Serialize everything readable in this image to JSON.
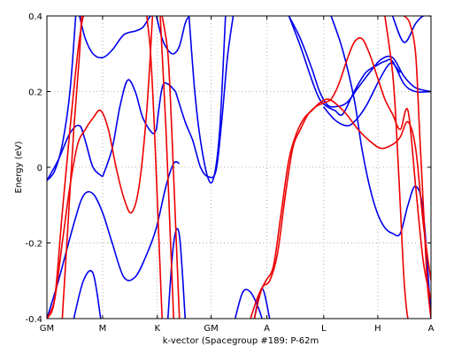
{
  "chart_data": {
    "type": "line",
    "title": "",
    "xlabel": "k-vector (Spacegroup #189: P-62m",
    "ylabel": "Energy (eV)",
    "xlim": [
      0,
      1
    ],
    "ylim": [
      -0.4,
      0.4
    ],
    "grid": true,
    "x_ticks": [
      {
        "label": "GM",
        "pos": 0.0
      },
      {
        "label": "M",
        "pos": 0.145
      },
      {
        "label": "K",
        "pos": 0.2874
      },
      {
        "label": "GM",
        "pos": 0.4276
      },
      {
        "label": "A",
        "pos": 0.5728
      },
      {
        "label": "L",
        "pos": 0.7207
      },
      {
        "label": "H",
        "pos": 0.8616
      },
      {
        "label": "A",
        "pos": 1.0
      }
    ],
    "y_ticks": [
      -0.4,
      -0.2,
      0,
      0.2,
      0.4
    ],
    "y_tick_labels": [
      "-0.4",
      "-0.2",
      "0",
      "0.2",
      "0.4"
    ],
    "series": [
      {
        "color": "#0000ee",
        "x": [
          0,
          0.02,
          0.04,
          0.06,
          0.075
        ],
        "y": [
          -0.035,
          -0.01,
          0.06,
          0.2,
          0.4
        ]
      },
      {
        "color": "#0000ee",
        "x": [
          0,
          0.03,
          0.06,
          0.085,
          0.1,
          0.12,
          0.145
        ],
        "y": [
          -0.035,
          0.02,
          0.09,
          0.11,
          0.07,
          0.0,
          -0.025
        ]
      },
      {
        "color": "#0000ee",
        "x": [
          0.145,
          0.17,
          0.19,
          0.21,
          0.23,
          0.25,
          0.275,
          0.285
        ],
        "y": [
          -0.025,
          0.05,
          0.16,
          0.23,
          0.2,
          0.13,
          0.09,
          0.1
        ]
      },
      {
        "color": "#0000ee",
        "x": [
          0.085,
          0.1,
          0.12,
          0.145,
          0.17,
          0.2,
          0.23,
          0.25,
          0.27,
          0.285
        ],
        "y": [
          0.4,
          0.34,
          0.3,
          0.29,
          0.31,
          0.35,
          0.36,
          0.37,
          0.4,
          0.4
        ]
      },
      {
        "color": "#0000ee",
        "x": [
          0.285,
          0.3,
          0.315,
          0.335
        ],
        "y": [
          0.1,
          0.21,
          0.22,
          0.2
        ]
      },
      {
        "color": "#0000ee",
        "x": [
          0.285,
          0.3,
          0.315,
          0.33,
          0.345,
          0.36,
          0.37
        ],
        "y": [
          0.4,
          0.34,
          0.31,
          0.3,
          0.32,
          0.38,
          0.4
        ]
      },
      {
        "color": "#0000ee",
        "x": [
          0.335,
          0.36,
          0.38,
          0.4,
          0.42,
          0.44,
          0.455,
          0.47,
          0.485
        ],
        "y": [
          0.2,
          0.12,
          0.07,
          0.0,
          -0.025,
          -0.01,
          0.12,
          0.29,
          0.4
        ]
      },
      {
        "color": "#0000ee",
        "x": [
          0.37,
          0.385,
          0.4,
          0.42,
          0.435,
          0.45,
          0.465
        ],
        "y": [
          0.4,
          0.2,
          0.07,
          -0.03,
          -0.025,
          0.1,
          0.4
        ]
      },
      {
        "color": "#0000ee",
        "x": [
          0.0,
          0.03,
          0.07,
          0.095,
          0.12,
          0.145,
          0.17,
          0.2,
          0.23,
          0.26,
          0.285,
          0.31,
          0.33,
          0.345
        ],
        "y": [
          -0.4,
          -0.3,
          -0.15,
          -0.075,
          -0.07,
          -0.12,
          -0.2,
          -0.29,
          -0.29,
          -0.23,
          -0.16,
          -0.05,
          0.01,
          0.01
        ]
      },
      {
        "color": "#0000ee",
        "x": [
          0.07,
          0.095,
          0.12,
          0.14
        ],
        "y": [
          -0.4,
          -0.3,
          -0.28,
          -0.4
        ]
      },
      {
        "color": "#0000ee",
        "x": [
          0.315,
          0.33,
          0.345,
          0.36
        ],
        "y": [
          -0.4,
          -0.2,
          -0.18,
          -0.4
        ]
      },
      {
        "color": "#0000ee",
        "x": [
          0.54,
          0.56,
          0.58
        ],
        "y": [
          -0.4,
          -0.32,
          -0.4
        ]
      },
      {
        "color": "#0000ee",
        "x": [
          0.49,
          0.51,
          0.53,
          0.55,
          0.56
        ],
        "y": [
          -0.4,
          -0.33,
          -0.33,
          -0.37,
          -0.4
        ]
      },
      {
        "color": "#0000ee",
        "x": [
          0.63,
          0.66,
          0.69,
          0.71,
          0.73,
          0.75,
          0.77,
          0.8,
          0.83,
          0.86,
          0.88,
          0.9,
          0.93,
          0.96,
          1.0
        ],
        "y": [
          0.4,
          0.32,
          0.23,
          0.18,
          0.16,
          0.15,
          0.14,
          0.2,
          0.25,
          0.27,
          0.28,
          0.28,
          0.22,
          0.2,
          0.2
        ]
      },
      {
        "color": "#0000ee",
        "x": [
          0.63,
          0.66,
          0.69,
          0.71,
          0.73,
          0.75,
          0.78,
          0.81,
          0.84,
          0.87,
          0.9,
          0.93,
          0.96,
          1.0
        ],
        "y": [
          0.4,
          0.34,
          0.26,
          0.2,
          0.165,
          0.16,
          0.17,
          0.21,
          0.25,
          0.285,
          0.29,
          0.24,
          0.21,
          0.2
        ]
      },
      {
        "color": "#0000ee",
        "x": [
          0.72,
          0.75,
          0.78,
          0.8,
          0.83,
          0.86,
          0.885,
          0.9,
          0.92
        ],
        "y": [
          0.16,
          0.125,
          0.11,
          0.12,
          0.16,
          0.22,
          0.265,
          0.275,
          0.25
        ]
      },
      {
        "color": "#0000ee",
        "x": [
          0.74,
          0.77,
          0.8,
          0.82,
          0.84,
          0.86,
          0.88,
          0.9,
          0.92,
          0.94,
          0.96,
          0.98,
          1.0
        ],
        "y": [
          0.4,
          0.31,
          0.18,
          0.05,
          -0.05,
          -0.12,
          -0.16,
          -0.175,
          -0.175,
          -0.1,
          -0.05,
          -0.12,
          -0.4
        ]
      },
      {
        "color": "#0000ee",
        "x": [
          0.9,
          0.93,
          0.96,
          0.98,
          1.0
        ],
        "y": [
          0.4,
          0.33,
          0.38,
          0.4,
          0.4
        ]
      },
      {
        "color": "#ee0000",
        "x": [
          0.0,
          0.02,
          0.04,
          0.06,
          0.08,
          0.1,
          0.12,
          0.14,
          0.16,
          0.18,
          0.2,
          0.22,
          0.24,
          0.26,
          0.275
        ],
        "y": [
          -0.4,
          -0.35,
          -0.2,
          -0.05,
          0.06,
          0.1,
          0.13,
          0.15,
          0.1,
          0.0,
          -0.08,
          -0.12,
          -0.05,
          0.15,
          0.4
        ]
      },
      {
        "color": "#ee0000",
        "x": [
          0.0,
          0.02,
          0.04,
          0.06,
          0.08,
          0.095,
          0.11
        ],
        "y": [
          -0.4,
          -0.35,
          -0.12,
          0.1,
          0.3,
          0.4,
          0.4
        ]
      },
      {
        "color": "#ee0000",
        "x": [
          0.04,
          0.055,
          0.07,
          0.085,
          0.09
        ],
        "y": [
          -0.4,
          -0.15,
          0.1,
          0.3,
          0.4
        ]
      },
      {
        "color": "#ee0000",
        "x": [
          0.26,
          0.27,
          0.28,
          0.29,
          0.3
        ],
        "y": [
          0.4,
          0.3,
          0.1,
          -0.15,
          -0.4
        ]
      },
      {
        "color": "#ee0000",
        "x": [
          0.3,
          0.315,
          0.325,
          0.335,
          0.345
        ],
        "y": [
          0.4,
          0.3,
          0.1,
          -0.15,
          -0.4
        ]
      },
      {
        "color": "#ee0000",
        "x": [
          0.295,
          0.31,
          0.32,
          0.33
        ],
        "y": [
          0.4,
          0.1,
          -0.15,
          -0.4
        ]
      },
      {
        "color": "#ee0000",
        "x": [
          0.54,
          0.56,
          0.58,
          0.6,
          0.62,
          0.64,
          0.66,
          0.68,
          0.7,
          0.72,
          0.74,
          0.76,
          0.78,
          0.8,
          0.82,
          0.84,
          0.86,
          0.88,
          0.9,
          0.92,
          0.94,
          0.96,
          0.98,
          1.0
        ],
        "y": [
          -0.4,
          -0.32,
          -0.3,
          -0.23,
          -0.08,
          0.05,
          0.1,
          0.14,
          0.16,
          0.17,
          0.18,
          0.22,
          0.28,
          0.33,
          0.34,
          0.3,
          0.24,
          0.18,
          0.14,
          0.1,
          0.15,
          -0.05,
          -0.25,
          -0.35
        ]
      },
      {
        "color": "#ee0000",
        "x": [
          0.53,
          0.55,
          0.57,
          0.59,
          0.61,
          0.63,
          0.65,
          0.67,
          0.69,
          0.71,
          0.73,
          0.75,
          0.78,
          0.81,
          0.84,
          0.87,
          0.9,
          0.92,
          0.94,
          0.96,
          0.98,
          1.0
        ],
        "y": [
          -0.4,
          -0.34,
          -0.3,
          -0.26,
          -0.12,
          0.02,
          0.09,
          0.13,
          0.15,
          0.17,
          0.18,
          0.17,
          0.14,
          0.1,
          0.07,
          0.05,
          0.06,
          0.08,
          0.12,
          0.05,
          -0.15,
          -0.3
        ]
      },
      {
        "color": "#ee0000",
        "x": [
          0.88,
          0.9,
          0.91,
          0.92,
          0.93,
          0.94,
          0.95
        ],
        "y": [
          0.4,
          0.25,
          0.1,
          -0.1,
          -0.3,
          -0.4,
          -0.4
        ]
      },
      {
        "color": "#ee0000",
        "x": [
          0.93,
          0.945,
          0.96,
          0.97,
          0.98,
          0.99,
          1.0
        ],
        "y": [
          0.4,
          0.38,
          0.3,
          0.1,
          -0.1,
          -0.3,
          -0.4
        ]
      }
    ]
  }
}
